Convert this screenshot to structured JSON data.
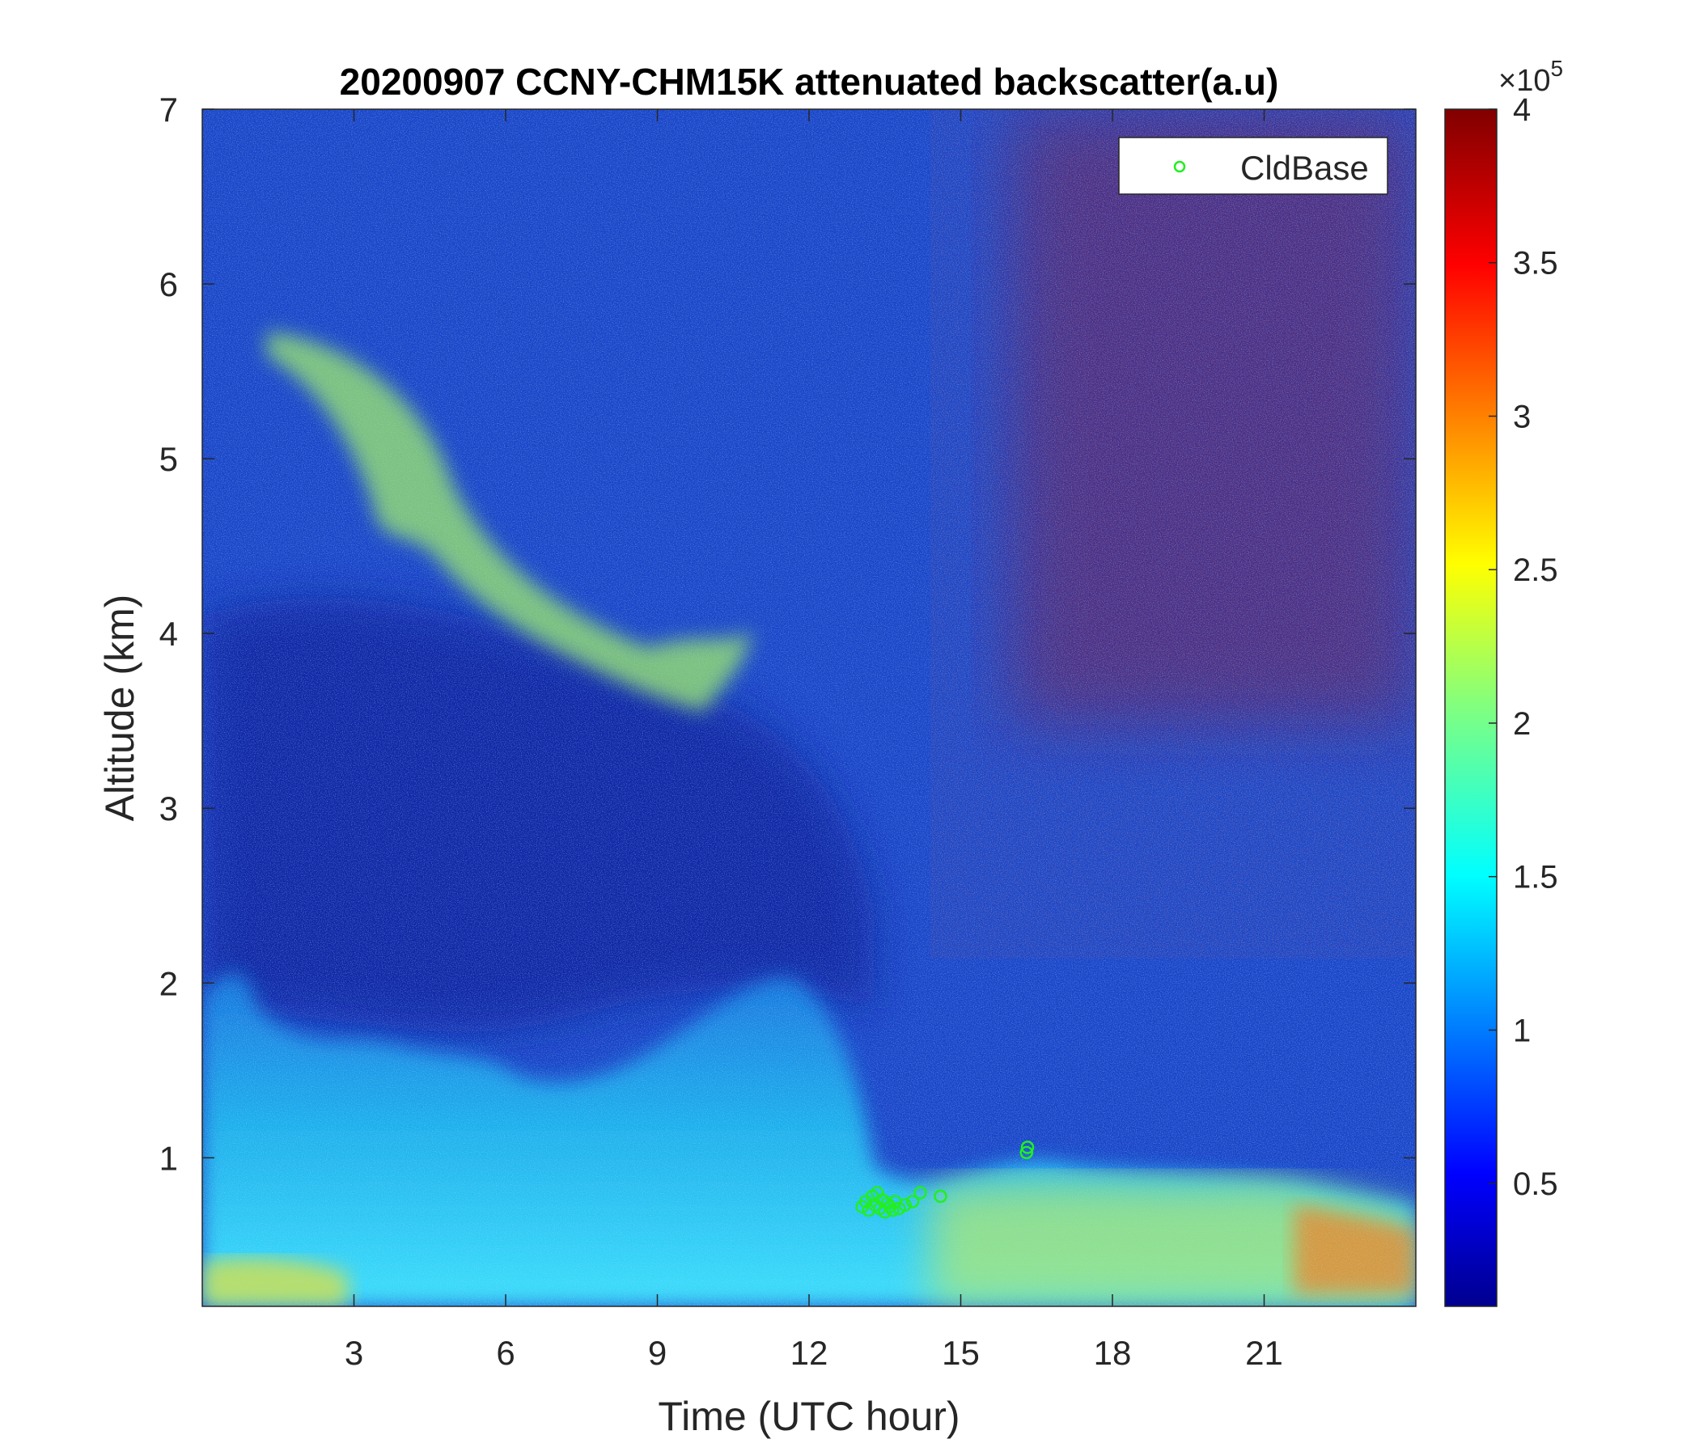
{
  "chart_data": {
    "type": "heatmap",
    "title": "20200907 CCNY-CHM15K attenuated backscatter(a.u)",
    "xlabel": "Time (UTC hour)",
    "ylabel": "Altitude (km)",
    "xlim": [
      0,
      24
    ],
    "ylim": [
      0.15,
      7
    ],
    "xticks": [
      {
        "value": 3,
        "label": "3"
      },
      {
        "value": 6,
        "label": "6"
      },
      {
        "value": 9,
        "label": "9"
      },
      {
        "value": 12,
        "label": "12"
      },
      {
        "value": 15,
        "label": "15"
      },
      {
        "value": 18,
        "label": "18"
      },
      {
        "value": 21,
        "label": "21"
      }
    ],
    "yticks": [
      {
        "value": 1,
        "label": "1"
      },
      {
        "value": 2,
        "label": "2"
      },
      {
        "value": 3,
        "label": "3"
      },
      {
        "value": 4,
        "label": "4"
      },
      {
        "value": 5,
        "label": "5"
      },
      {
        "value": 6,
        "label": "6"
      },
      {
        "value": 7,
        "label": "7"
      }
    ],
    "colorbar": {
      "colormap": "jet",
      "range": [
        0.1,
        4
      ],
      "multiplier": "×10",
      "exponent": "5",
      "ticks": [
        {
          "value": 0.5,
          "label": "0.5"
        },
        {
          "value": 1,
          "label": "1"
        },
        {
          "value": 1.5,
          "label": "1.5"
        },
        {
          "value": 2,
          "label": "2"
        },
        {
          "value": 2.5,
          "label": "2.5"
        },
        {
          "value": 3,
          "label": "3"
        },
        {
          "value": 3.5,
          "label": "3.5"
        },
        {
          "value": 4,
          "label": "4"
        }
      ]
    },
    "legend": {
      "placement": "top-right",
      "entries": [
        {
          "name": "CldBase",
          "marker": "circle",
          "color": "#22ee22"
        }
      ]
    },
    "series": [
      {
        "name": "CldBase",
        "type": "scatter",
        "points": [
          {
            "x": 13.05,
            "y": 0.72
          },
          {
            "x": 13.12,
            "y": 0.75
          },
          {
            "x": 13.18,
            "y": 0.7
          },
          {
            "x": 13.25,
            "y": 0.78
          },
          {
            "x": 13.3,
            "y": 0.73
          },
          {
            "x": 13.35,
            "y": 0.8
          },
          {
            "x": 13.4,
            "y": 0.71
          },
          {
            "x": 13.45,
            "y": 0.76
          },
          {
            "x": 13.5,
            "y": 0.69
          },
          {
            "x": 13.55,
            "y": 0.74
          },
          {
            "x": 13.6,
            "y": 0.72
          },
          {
            "x": 13.65,
            "y": 0.7
          },
          {
            "x": 13.7,
            "y": 0.75
          },
          {
            "x": 13.78,
            "y": 0.71
          },
          {
            "x": 13.9,
            "y": 0.73
          },
          {
            "x": 14.05,
            "y": 0.75
          },
          {
            "x": 14.2,
            "y": 0.8
          },
          {
            "x": 14.6,
            "y": 0.78
          },
          {
            "x": 16.3,
            "y": 1.03
          },
          {
            "x": 16.32,
            "y": 1.06
          }
        ]
      }
    ],
    "regions": [
      {
        "note": "elevated aerosol layer",
        "color": "#a0e060"
      },
      {
        "note": "boundary layer",
        "color": "#3ed8f0"
      }
    ]
  }
}
